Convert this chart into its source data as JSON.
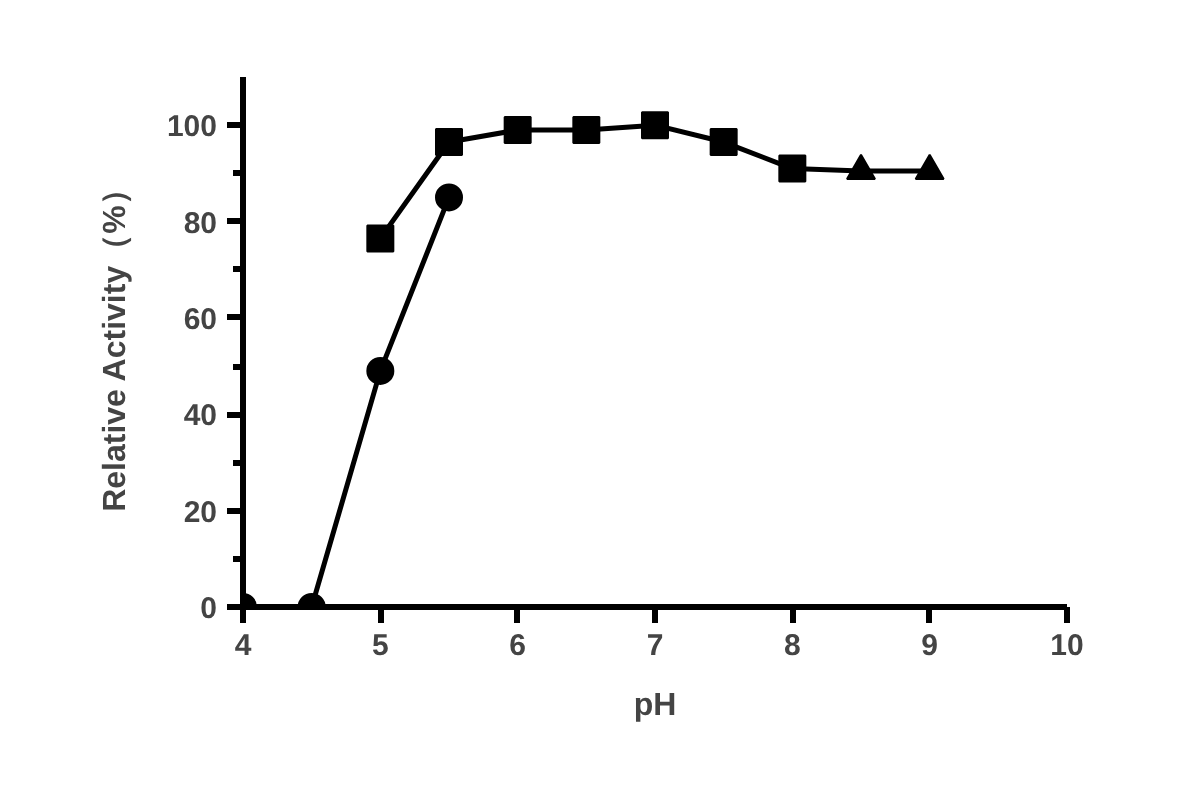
{
  "chart_data": {
    "type": "line",
    "xlabel": "pH",
    "ylabel": "Relative Activity（%）",
    "xlim": [
      4,
      10
    ],
    "xticks": [
      4,
      5,
      6,
      7,
      8,
      9,
      10
    ],
    "ylim": [
      0,
      110
    ],
    "yticks": [
      0,
      20,
      40,
      60,
      80,
      100
    ],
    "grid": false,
    "series": [
      {
        "color": "#000000",
        "marker": "circle",
        "x": [
          4,
          4.5,
          5,
          5.5
        ],
        "values": [
          0,
          0,
          49,
          85
        ]
      },
      {
        "color": "#000000",
        "marker": "square",
        "x": [
          5,
          5.5,
          6,
          6.5,
          7,
          7.5,
          8
        ],
        "values": [
          76.5,
          96.5,
          99,
          99,
          100,
          96.5,
          91
        ]
      },
      {
        "color": "#000000",
        "marker": "triangle",
        "x": [
          8,
          8.5,
          9
        ],
        "values": [
          91,
          90.5,
          90.5
        ]
      }
    ]
  }
}
